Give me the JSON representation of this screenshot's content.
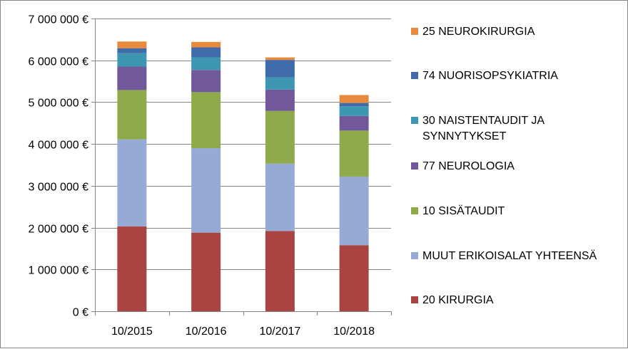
{
  "chart_data": {
    "type": "bar",
    "stacked": true,
    "title": "",
    "xlabel": "",
    "ylabel": "",
    "categories": [
      "10/2015",
      "10/2016",
      "10/2017",
      "10/2018"
    ],
    "ylim": [
      0,
      7000000
    ],
    "yticks": [
      0,
      1000000,
      2000000,
      3000000,
      4000000,
      5000000,
      6000000,
      7000000
    ],
    "ytick_labels": [
      "0 €",
      "1 000 000 €",
      "2 000 000 €",
      "3 000 000 €",
      "4 000 000 €",
      "5 000 000 €",
      "6 000 000 €",
      "7 000 000 €"
    ],
    "grid": true,
    "legend_position": "right",
    "series": [
      {
        "name": "20 KIRURGIA",
        "color": "#A94442",
        "values": [
          2030000,
          1880000,
          1920000,
          1580000
        ]
      },
      {
        "name": "MUUT ERIKOISALAT YHTEENSÄ",
        "color": "#95ABD6",
        "values": [
          2080000,
          2020000,
          1610000,
          1640000
        ]
      },
      {
        "name": "10 SISÄTAUDIT",
        "color": "#8EAA4A",
        "values": [
          1180000,
          1340000,
          1260000,
          1100000
        ]
      },
      {
        "name": "77 NEUROLOGIA",
        "color": "#70589A",
        "values": [
          560000,
          530000,
          510000,
          350000
        ]
      },
      {
        "name": "30 NAISTENTAUDIT JA SYNNYTYKSET",
        "color": "#3E97B2",
        "values": [
          320000,
          300000,
          290000,
          230000
        ]
      },
      {
        "name": "74 NUORISOPSYKIATRIA",
        "color": "#3F6BAA",
        "values": [
          120000,
          240000,
          420000,
          80000
        ]
      },
      {
        "name": "25 NEUROKIRURGIA",
        "color": "#E88A3C",
        "values": [
          160000,
          130000,
          60000,
          190000
        ]
      }
    ]
  }
}
